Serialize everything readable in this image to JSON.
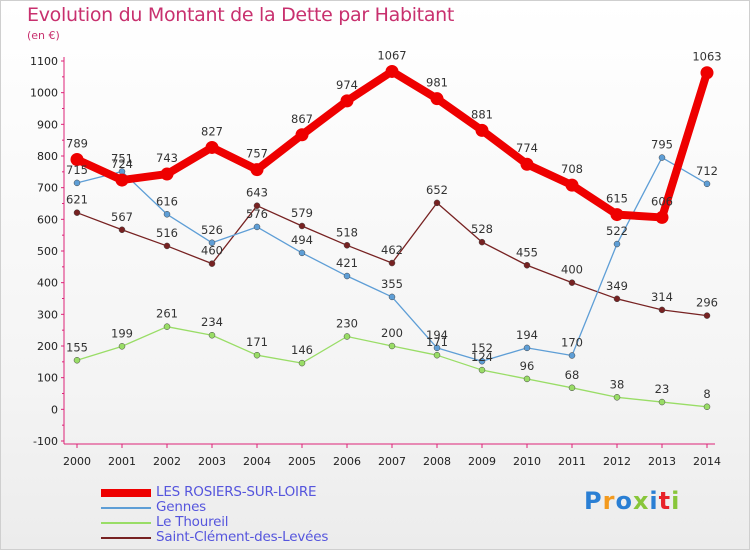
{
  "header": {
    "title": "Evolution du Montant de la Dette par Habitant",
    "subtitle": "(en €)"
  },
  "logo": {
    "text": "Proxiti"
  },
  "chart_data": {
    "type": "line",
    "title": "Evolution du Montant de la Dette par Habitant",
    "subtitle": "(en €)",
    "x": [
      2000,
      2001,
      2002,
      2003,
      2004,
      2005,
      2006,
      2007,
      2008,
      2009,
      2010,
      2011,
      2012,
      2013,
      2014
    ],
    "ylim": [
      -100,
      1100
    ],
    "yticks": [
      -100,
      0,
      100,
      200,
      300,
      400,
      500,
      600,
      700,
      800,
      900,
      1000,
      1100
    ],
    "grid": false,
    "legend_position": "bottom-left",
    "series": [
      {
        "name": "LES ROSIERS-SUR-LOIRE",
        "color": "#ee0000",
        "values": [
          789,
          724,
          743,
          827,
          757,
          867,
          974,
          1067,
          981,
          881,
          774,
          708,
          615,
          606,
          1063
        ]
      },
      {
        "name": "Gennes",
        "color": "#5e9ed6",
        "values": [
          715,
          751,
          616,
          526,
          576,
          494,
          421,
          355,
          194,
          152,
          194,
          170,
          522,
          795,
          712
        ]
      },
      {
        "name": "Le Thoureil",
        "color": "#99dd66",
        "values": [
          155,
          199,
          261,
          234,
          171,
          146,
          230,
          200,
          171,
          124,
          96,
          68,
          38,
          23,
          8
        ]
      },
      {
        "name": "Saint-Clément-des-Levées",
        "color": "#772222",
        "values": [
          621,
          567,
          516,
          460,
          643,
          579,
          518,
          462,
          652,
          528,
          455,
          400,
          349,
          314,
          296
        ]
      }
    ]
  }
}
